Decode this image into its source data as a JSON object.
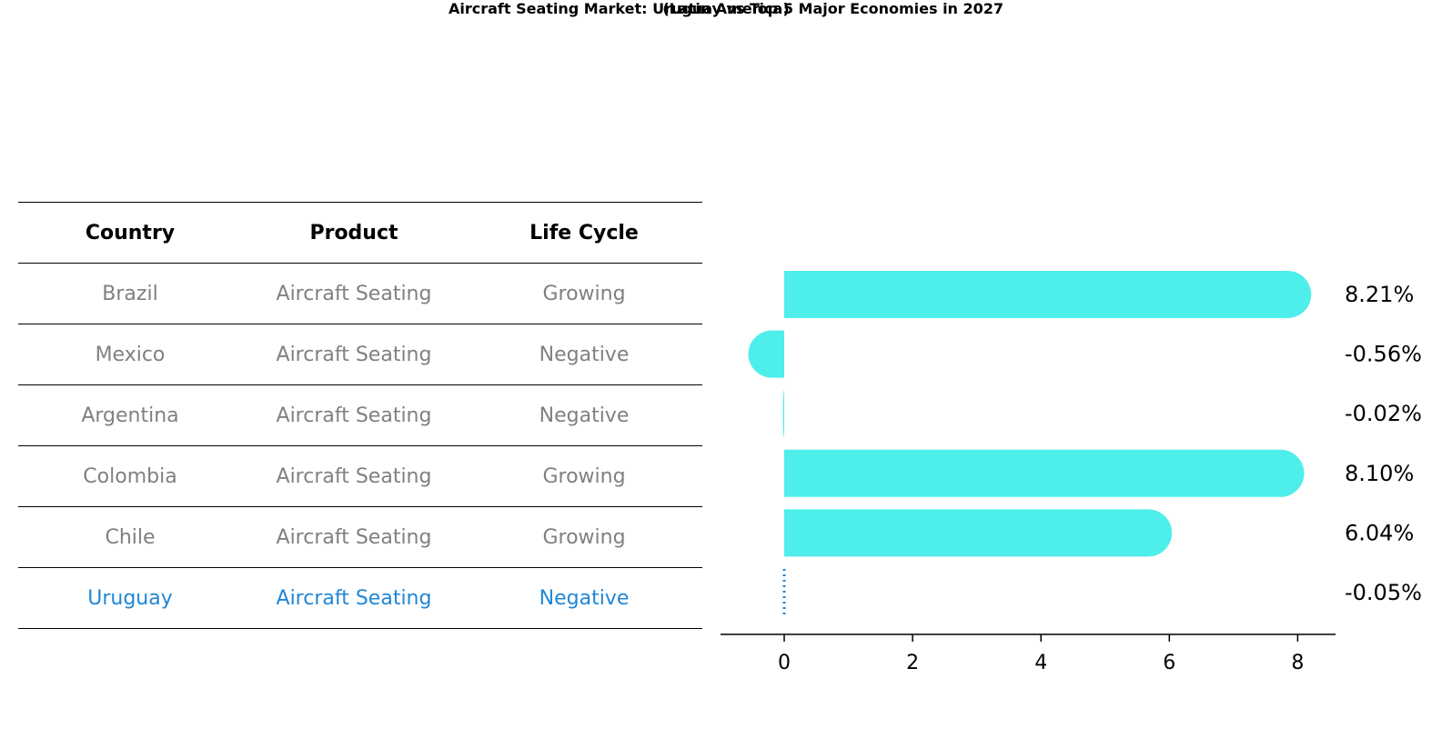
{
  "title": "Aircraft Seating Market: Uruguay vs Top 5 Major Economies in 2027",
  "subtitle": "(Latin America)",
  "table": {
    "headers": [
      "Country",
      "Product",
      "Life Cycle"
    ],
    "rows": [
      {
        "country": "Brazil",
        "product": "Aircraft Seating",
        "life_cycle": "Growing"
      },
      {
        "country": "Mexico",
        "product": "Aircraft Seating",
        "life_cycle": "Negative"
      },
      {
        "country": "Argentina",
        "product": "Aircraft Seating",
        "life_cycle": "Negative"
      },
      {
        "country": "Colombia",
        "product": "Aircraft Seating",
        "life_cycle": "Growing"
      },
      {
        "country": "Chile",
        "product": "Aircraft Seating",
        "life_cycle": "Growing"
      },
      {
        "country": "Uruguay",
        "product": "Aircraft Seating",
        "life_cycle": "Negative"
      }
    ],
    "colors": {
      "text": "#808080",
      "highlight": "#1f87d6"
    }
  },
  "chart_data": {
    "type": "bar",
    "orientation": "horizontal",
    "categories": [
      "Brazil",
      "Mexico",
      "Argentina",
      "Colombia",
      "Chile",
      "Uruguay"
    ],
    "values": [
      8.21,
      -0.56,
      -0.02,
      8.1,
      6.04,
      -0.05
    ],
    "labels": [
      "8.21%",
      "-0.56%",
      "-0.02%",
      "8.10%",
      "6.04%",
      "-0.05%"
    ],
    "xticks": [
      0,
      2,
      4,
      6,
      8
    ],
    "xlim": [
      -1,
      8.65
    ],
    "highlight_index": 5,
    "bar_color": "#4eeeea",
    "highlight_color": "#1f87d6",
    "grid": false
  }
}
